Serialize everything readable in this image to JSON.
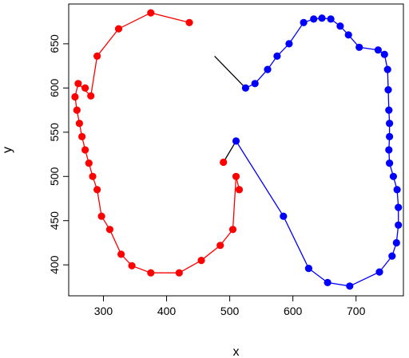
{
  "chart_data": {
    "type": "scatter",
    "title": "",
    "xlabel": "x",
    "ylabel": "y",
    "xlim": [
      245,
      775
    ],
    "ylim": [
      365,
      695
    ],
    "grid": false,
    "legend": "none",
    "x_ticks": [
      300,
      400,
      500,
      600,
      700
    ],
    "y_ticks": [
      400,
      450,
      500,
      550,
      600,
      650
    ],
    "series": [
      {
        "color": "#ff0000",
        "mode": "lines+markers",
        "x": [
          515,
          510,
          505,
          485,
          455,
          420,
          375,
          345,
          328,
          310,
          297,
          290,
          283,
          277,
          271,
          266,
          262,
          258,
          255,
          260,
          280,
          290,
          324,
          375,
          436
        ],
        "y": [
          485,
          500,
          440,
          422,
          405,
          391,
          391,
          399,
          412,
          440,
          455,
          485,
          500,
          515,
          530,
          545,
          560,
          575,
          590,
          605,
          591,
          636,
          667,
          685,
          674
        ]
      },
      {
        "color": "#ff0000",
        "mode": "markers",
        "x": [
          271,
          490
        ],
        "y": [
          600,
          516
        ]
      },
      {
        "color": "#000000",
        "mode": "lines",
        "x": [
          476,
          525
        ],
        "y": [
          636,
          600
        ]
      },
      {
        "color": "#000000",
        "mode": "lines",
        "x": [
          490,
          510
        ],
        "y": [
          516,
          540
        ]
      },
      {
        "color": "#0000ff",
        "mode": "lines+markers",
        "x": [
          510,
          585,
          625,
          655,
          690,
          737,
          757,
          764,
          767,
          767,
          765,
          759,
          753,
          752,
          753,
          753,
          752,
          751,
          750,
          745,
          735,
          705,
          688,
          675,
          660,
          646,
          633,
          617,
          594,
          575,
          560,
          540,
          525
        ],
        "y": [
          540,
          455,
          396,
          380,
          376,
          392,
          410,
          425,
          445,
          465,
          485,
          500,
          515,
          530,
          545,
          560,
          575,
          598,
          621,
          638,
          643,
          646,
          660,
          670,
          678,
          679,
          678,
          674,
          650,
          636,
          621,
          605,
          600
        ]
      }
    ]
  }
}
